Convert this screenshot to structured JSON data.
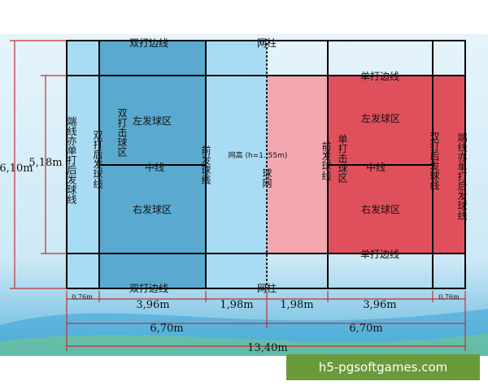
{
  "labels": {
    "doubles_sideline": "双打边线",
    "singles_sideline": "单打边线",
    "net_post": "网柱",
    "net": "球网",
    "net_height": "网高 (h=1. 55m)",
    "left_service_court": "左发球区",
    "right_service_court": "右发球区",
    "center_line": "中线",
    "short_service_line": "前发球线",
    "doubles_long_service_line": "双打后发球线",
    "baseline": "端线亦单打后发球线",
    "doubles_court": "双打击球区",
    "singles_court": "单打击球区"
  },
  "dimensions": {
    "width_total": "6,10m",
    "width_singles": "5,18m",
    "back_gap": "0,76m",
    "back_section": "3,96m",
    "front_section": "1,98m",
    "half_length": "6,70m",
    "total_length": "13,40m"
  },
  "colors": {
    "left_court": "#5aaad0",
    "left_light_band": "#a8dcf5",
    "right_court": "#e0505c",
    "right_light_band": "#f3a8b0",
    "lines": "#000000",
    "dimension_lines": "#c0303a"
  },
  "watermark": "h5-pgsoftgames.com"
}
